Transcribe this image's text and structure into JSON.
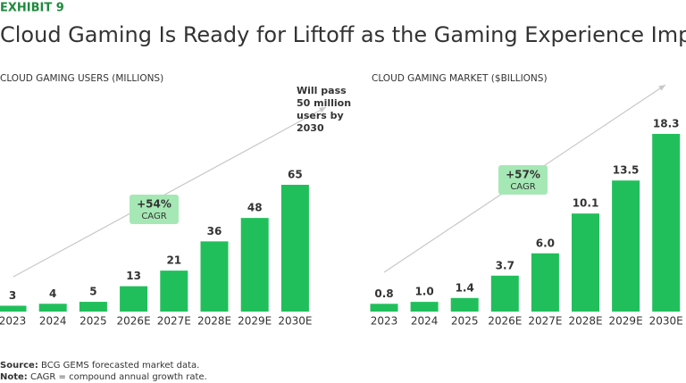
{
  "exhibit": "EXHIBIT 9",
  "title": "Cloud Gaming Is Ready for Liftoff as the Gaming Experience Improves",
  "source_label": "Source:",
  "source_text": "BCG GEMS forecasted market data.",
  "note_label": "Note:",
  "note_text": "CAGR = compound annual growth rate.",
  "chart_data": [
    {
      "type": "bar",
      "title": "CLOUD GAMING USERS (MILLIONS)",
      "categories": [
        "2023",
        "2024",
        "2025",
        "2026E",
        "2027E",
        "2028E",
        "2029E",
        "2030E"
      ],
      "values": [
        3,
        4,
        5,
        13,
        21,
        36,
        48,
        65
      ],
      "color": "#21bf5b",
      "cagr": "+54%",
      "cagr_label": "CAGR",
      "annotation": [
        "Will pass",
        "50 million",
        "users by",
        "2030"
      ]
    },
    {
      "type": "bar",
      "title": "CLOUD GAMING MARKET ($BILLIONS)",
      "categories": [
        "2023",
        "2024",
        "2025",
        "2026E",
        "2027E",
        "2028E",
        "2029E",
        "2030E"
      ],
      "values": [
        0.8,
        1.0,
        1.4,
        3.7,
        6.0,
        10.1,
        13.5,
        18.3
      ],
      "value_labels": [
        "0.8",
        "1.0",
        "1.4",
        "3.7",
        "6.0",
        "10.1",
        "13.5",
        "18.3"
      ],
      "color": "#21bf5b",
      "cagr": "+57%",
      "cagr_label": "CAGR"
    }
  ]
}
